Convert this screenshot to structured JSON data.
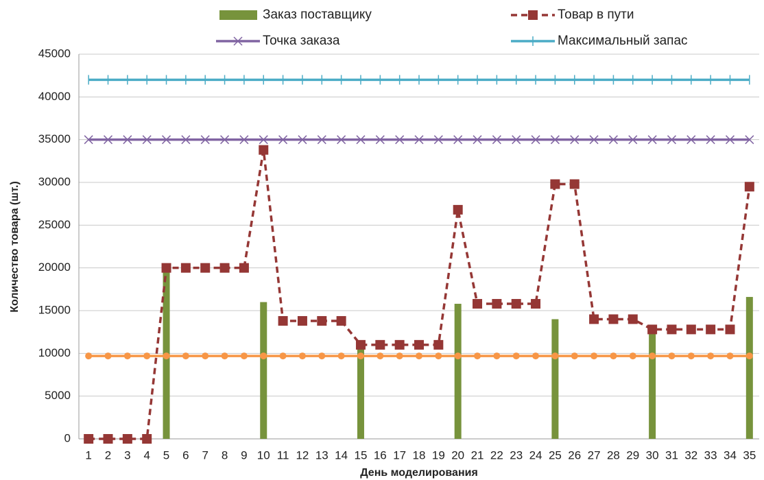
{
  "chart_data": {
    "type": "combo",
    "xlabel": "День моделирования",
    "ylabel": "Количество товара (шт.)",
    "categories": [
      "1",
      "2",
      "3",
      "4",
      "5",
      "6",
      "7",
      "8",
      "9",
      "10",
      "11",
      "12",
      "13",
      "14",
      "15",
      "16",
      "17",
      "18",
      "19",
      "20",
      "21",
      "22",
      "23",
      "24",
      "25",
      "26",
      "27",
      "28",
      "29",
      "30",
      "31",
      "32",
      "33",
      "34",
      "35"
    ],
    "ylim": [
      0,
      45000
    ],
    "yticks": [
      0,
      5000,
      10000,
      15000,
      20000,
      25000,
      30000,
      35000,
      40000,
      45000
    ],
    "grid": true,
    "series": [
      {
        "name": "Заказ поставщику",
        "kind": "bar",
        "color": "#77933c",
        "values": [
          0,
          0,
          0,
          0,
          19700,
          0,
          0,
          0,
          0,
          16000,
          0,
          0,
          0,
          0,
          10500,
          0,
          0,
          0,
          0,
          15800,
          0,
          0,
          0,
          0,
          14000,
          0,
          0,
          0,
          0,
          12600,
          0,
          0,
          0,
          0,
          16600
        ]
      },
      {
        "name": "Товар в пути",
        "kind": "line",
        "color": "#953735",
        "dash": true,
        "marker": "square",
        "values": [
          0,
          0,
          0,
          0,
          20000,
          20000,
          20000,
          20000,
          20000,
          33800,
          13800,
          13800,
          13800,
          13800,
          11000,
          11000,
          11000,
          11000,
          11000,
          26800,
          15800,
          15800,
          15800,
          15800,
          29800,
          29800,
          14000,
          14000,
          14000,
          12800,
          12800,
          12800,
          12800,
          12800,
          29500
        ]
      },
      {
        "name": "Точка заказа",
        "kind": "line",
        "color": "#8064a2",
        "dash": false,
        "marker": "x",
        "values": [
          35000,
          35000,
          35000,
          35000,
          35000,
          35000,
          35000,
          35000,
          35000,
          35000,
          35000,
          35000,
          35000,
          35000,
          35000,
          35000,
          35000,
          35000,
          35000,
          35000,
          35000,
          35000,
          35000,
          35000,
          35000,
          35000,
          35000,
          35000,
          35000,
          35000,
          35000,
          35000,
          35000,
          35000,
          35000
        ]
      },
      {
        "name": "Максимальный запас",
        "kind": "line",
        "color": "#4bacc6",
        "dash": false,
        "marker": "plus",
        "values": [
          42000,
          42000,
          42000,
          42000,
          42000,
          42000,
          42000,
          42000,
          42000,
          42000,
          42000,
          42000,
          42000,
          42000,
          42000,
          42000,
          42000,
          42000,
          42000,
          42000,
          42000,
          42000,
          42000,
          42000,
          42000,
          42000,
          42000,
          42000,
          42000,
          42000,
          42000,
          42000,
          42000,
          42000,
          42000
        ]
      },
      {
        "kind": "line",
        "color": "#f79646",
        "dash": false,
        "marker": "circle",
        "values": [
          9700,
          9700,
          9700,
          9700,
          9700,
          9700,
          9700,
          9700,
          9700,
          9700,
          9700,
          9700,
          9700,
          9700,
          9700,
          9700,
          9700,
          9700,
          9700,
          9700,
          9700,
          9700,
          9700,
          9700,
          9700,
          9700,
          9700,
          9700,
          9700,
          9700,
          9700,
          9700,
          9700,
          9700,
          9700
        ]
      }
    ]
  }
}
